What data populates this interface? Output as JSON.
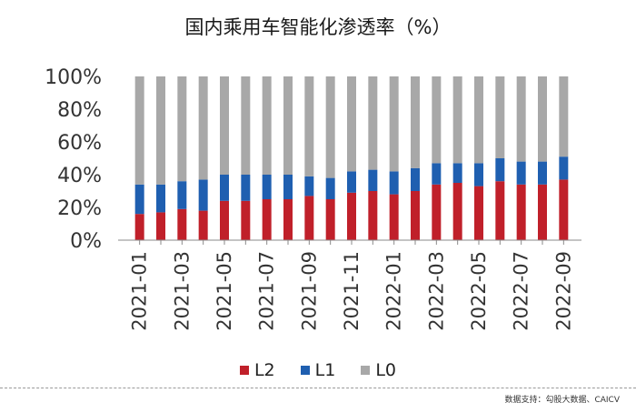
{
  "chart_data": {
    "type": "bar",
    "stacked": true,
    "title": "国内乘用车智能化渗透率（%）",
    "categories": [
      "2021-01",
      "2021-02",
      "2021-03",
      "2021-04",
      "2021-05",
      "2021-06",
      "2021-07",
      "2021-08",
      "2021-09",
      "2021-10",
      "2021-11",
      "2021-12",
      "2022-01",
      "2022-02",
      "2022-03",
      "2022-04",
      "2022-05",
      "2022-06",
      "2022-07",
      "2022-08",
      "2022-09"
    ],
    "x_tick_labels": [
      "2021-01",
      "",
      "2021-03",
      "",
      "2021-05",
      "",
      "2021-07",
      "",
      "2021-09",
      "",
      "2021-11",
      "",
      "2022-01",
      "",
      "2022-03",
      "",
      "2022-05",
      "",
      "2022-07",
      "",
      "2022-09"
    ],
    "y_ticks": [
      "0%",
      "20%",
      "40%",
      "60%",
      "80%",
      "100%"
    ],
    "ylim": [
      0,
      100
    ],
    "series": [
      {
        "name": "L2",
        "color": "#c0202a",
        "values": [
          16,
          17,
          19,
          18,
          24,
          24,
          25,
          25,
          27,
          25,
          29,
          30,
          28,
          30,
          34,
          35,
          33,
          36,
          34,
          34,
          37
        ]
      },
      {
        "name": "L1",
        "color": "#1f5fb0",
        "values": [
          18,
          17,
          17,
          19,
          16,
          16,
          15,
          15,
          12,
          13,
          13,
          13,
          14,
          14,
          13,
          12,
          14,
          14,
          14,
          14,
          14
        ]
      },
      {
        "name": "L0",
        "color": "#a8a8a8",
        "values": [
          66,
          66,
          64,
          63,
          60,
          60,
          60,
          60,
          61,
          62,
          58,
          57,
          58,
          56,
          53,
          53,
          53,
          50,
          52,
          52,
          49
        ]
      }
    ],
    "legend_position": "bottom",
    "grid": false
  },
  "source_note": "数据支持：勾股大数据、CAICV"
}
